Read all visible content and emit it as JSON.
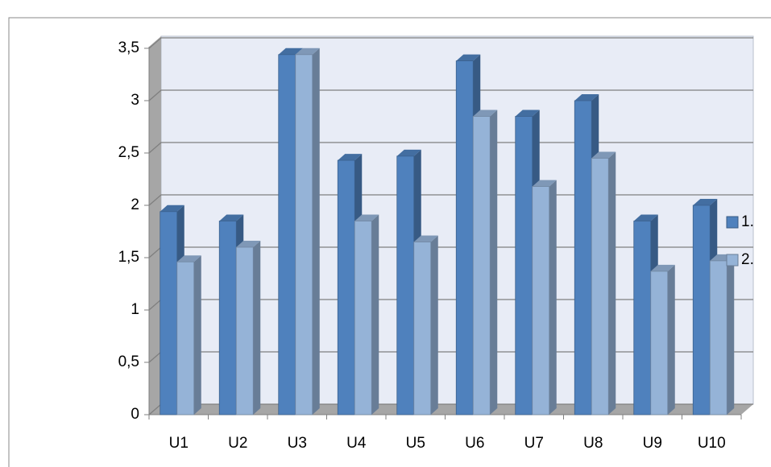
{
  "chart_data": {
    "type": "bar3d",
    "categories": [
      "U1",
      "U2",
      "U3",
      "U4",
      "U5",
      "U6",
      "U7",
      "U8",
      "U9",
      "U10"
    ],
    "series": [
      {
        "name": "1.",
        "color": "#4f81bd",
        "values": [
          1.94,
          1.85,
          3.44,
          2.43,
          2.47,
          3.38,
          2.85,
          3.0,
          1.85,
          2.0
        ]
      },
      {
        "name": "2.",
        "color": "#95b3d7",
        "values": [
          1.46,
          1.6,
          3.44,
          1.85,
          1.65,
          2.85,
          2.18,
          2.45,
          1.37,
          1.47
        ]
      }
    ],
    "ylim": [
      0,
      3.5
    ],
    "yticks": [
      0,
      {
        "value": 0.5,
        "label": "0,5"
      },
      1,
      {
        "value": 1.5,
        "label": "1,5"
      },
      2,
      {
        "value": 2.5,
        "label": "2,5"
      },
      3,
      {
        "value": 3.5,
        "label": "3,5"
      }
    ],
    "grid": true,
    "legend": "right"
  }
}
